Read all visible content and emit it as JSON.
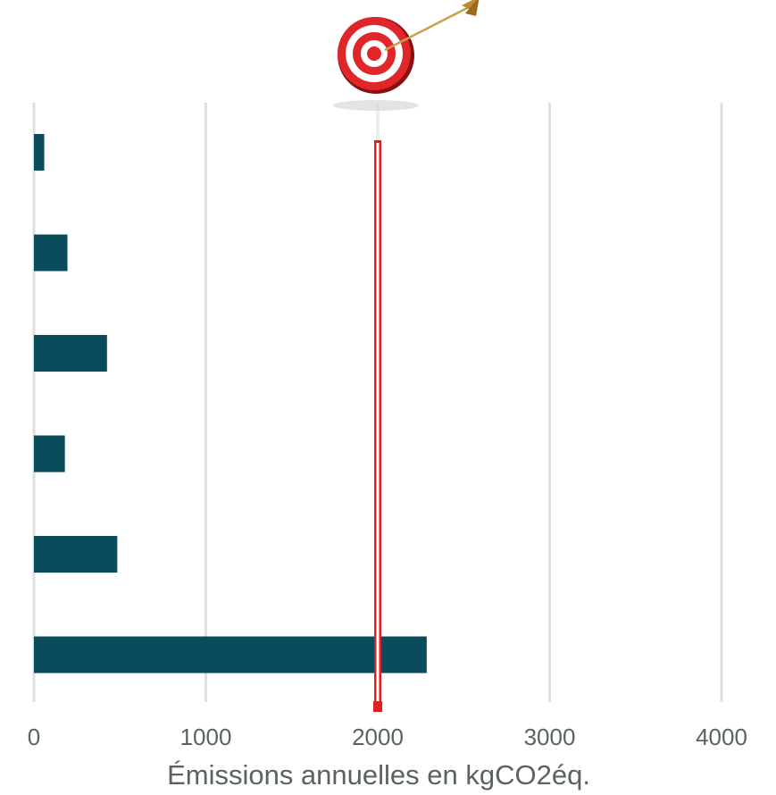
{
  "chart_data": {
    "type": "bar",
    "orientation": "horizontal",
    "title": "",
    "xlabel": "Émissions annuelles en kgCO2éq.",
    "ylabel": "",
    "xlim": [
      0,
      4000
    ],
    "xticks": [
      0,
      1000,
      2000,
      3000,
      4000
    ],
    "xtick_labels": [
      "0",
      "1000",
      "2000",
      "3000",
      "4000"
    ],
    "grid": true,
    "legend": "none",
    "values": [
      60,
      195,
      425,
      180,
      485,
      2285
    ],
    "target": 2000,
    "colors": {
      "bar": "#0b4c5c",
      "grid": "#dbe2dc",
      "target_line": "#e01e1e",
      "text": "#5a6362"
    },
    "target_icon": "dartboard-with-arrow-icon"
  }
}
